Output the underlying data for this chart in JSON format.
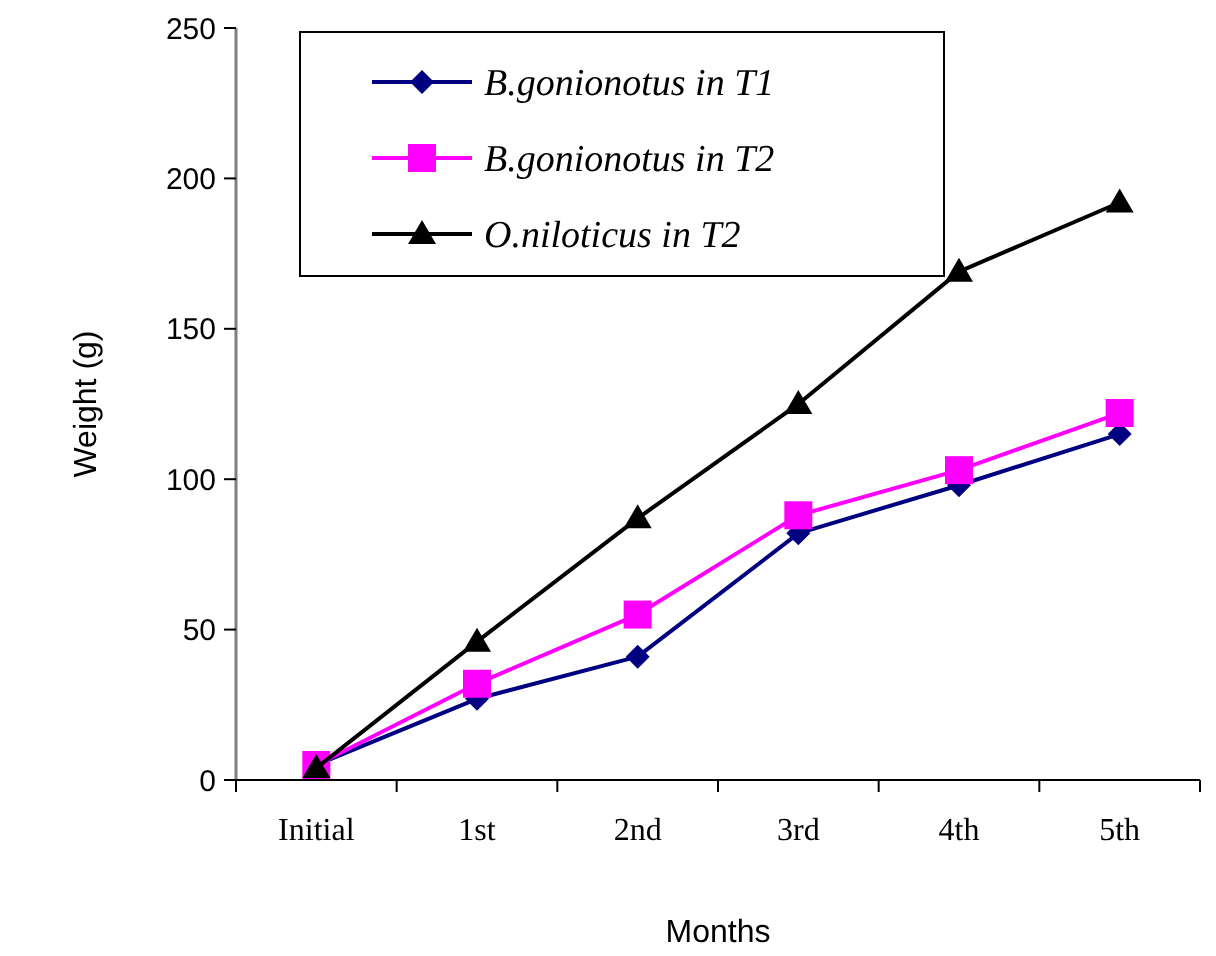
{
  "chart_data": {
    "type": "line",
    "xlabel": "Months",
    "ylabel": "Weight (g)",
    "categories": [
      "Initial",
      "1st",
      "2nd",
      "3rd",
      "4th",
      "5th"
    ],
    "series": [
      {
        "name": "B.gonionotus in T1",
        "color": "#000080",
        "marker": "diamond",
        "values": [
          5,
          27,
          41,
          82,
          98,
          115
        ]
      },
      {
        "name": "B.gonionotus in T2",
        "color": "#ff00ff",
        "marker": "square",
        "values": [
          5,
          32,
          55,
          88,
          103,
          122
        ]
      },
      {
        "name": "O.niloticus in T2",
        "color": "#000000",
        "marker": "triangle",
        "values": [
          4,
          46,
          87,
          125,
          169,
          192
        ]
      }
    ],
    "ylim": [
      0,
      250
    ],
    "yticks": [
      0,
      50,
      100,
      150,
      200,
      250
    ],
    "grid": false,
    "legend": "top left",
    "line_style": "solid"
  }
}
